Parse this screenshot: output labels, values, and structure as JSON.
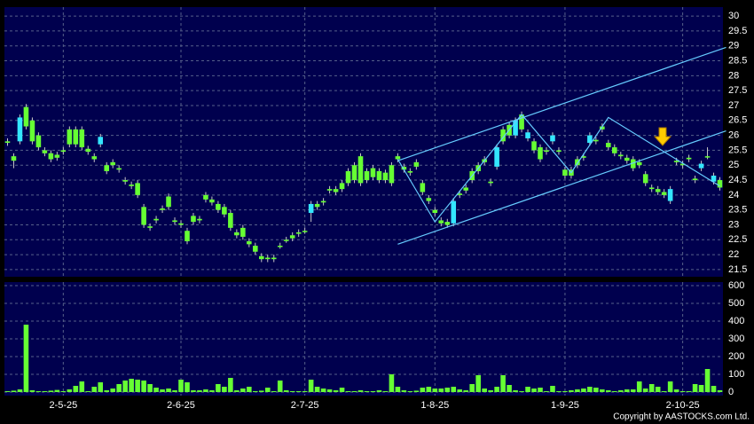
{
  "chart_data": {
    "type": "candlestick",
    "categories": [
      null,
      null,
      null,
      null,
      null,
      null,
      null,
      null,
      null,
      "2-5-25",
      null,
      null,
      null,
      null,
      null,
      null,
      null,
      null,
      null,
      null,
      null,
      null,
      null,
      null,
      null,
      null,
      null,
      null,
      "2-6-25",
      null,
      null,
      null,
      null,
      null,
      null,
      null,
      null,
      null,
      null,
      null,
      null,
      null,
      null,
      null,
      null,
      null,
      null,
      null,
      "2-7-25",
      null,
      null,
      null,
      null,
      null,
      null,
      null,
      null,
      null,
      null,
      null,
      null,
      null,
      null,
      null,
      null,
      null,
      null,
      null,
      null,
      "1-8-25",
      null,
      null,
      null,
      null,
      null,
      null,
      null,
      null,
      null,
      null,
      null,
      null,
      null,
      null,
      null,
      null,
      null,
      null,
      null,
      null,
      "1-9-25",
      null,
      null,
      null,
      null,
      null,
      null,
      null,
      null,
      null,
      null,
      null,
      null,
      null,
      null,
      null,
      null,
      null,
      null,
      "2-10-25",
      null,
      null,
      null,
      null,
      null,
      null
    ],
    "open": [
      25.8,
      25.3,
      25.8,
      26.95,
      26.5,
      26.0,
      25.5,
      25.4,
      25.35,
      25.5,
      26.2,
      26.2,
      26.2,
      25.55,
      25.3,
      25.7,
      25.0,
      25.1,
      24.9,
      24.5,
      24.35,
      24.4,
      23.6,
      22.95,
      23.2,
      23.55,
      23.95,
      23.15,
      23.05,
      22.8,
      23.3,
      23.2,
      24.0,
      23.85,
      23.7,
      23.6,
      23.4,
      22.75,
      22.9,
      22.45,
      22.3,
      21.95,
      21.9,
      21.9,
      22.3,
      22.5,
      22.65,
      22.75,
      22.8,
      23.4,
      23.7,
      23.8,
      24.2,
      24.2,
      24.4,
      24.8,
      25.0,
      25.3,
      24.8,
      24.9,
      24.8,
      24.75,
      25.0,
      25.3,
      24.95,
      24.8,
      25.1,
      24.4,
      23.9,
      23.5,
      23.15,
      23.1,
      23.05,
      24.05,
      24.25,
      24.8,
      25.0,
      25.2,
      24.45,
      24.95,
      26.2,
      26.35,
      26.0,
      26.7,
      25.9,
      25.8,
      25.6,
      25.5,
      25.8,
      25.5,
      24.85,
      24.85,
      25.2,
      25.3,
      25.75,
      25.85,
      26.3,
      25.75,
      25.6,
      25.35,
      25.25,
      25.2,
      25.1,
      24.7,
      24.25,
      24.2,
      24.1,
      23.8,
      25.15,
      25.05,
      25.25,
      24.55,
      24.9,
      25.3,
      24.45,
      24.5
    ],
    "high": [
      25.9,
      25.4,
      26.7,
      27.05,
      26.6,
      26.1,
      25.6,
      25.5,
      25.45,
      25.6,
      26.3,
      26.3,
      26.3,
      25.65,
      25.4,
      26.05,
      25.1,
      25.2,
      25.0,
      24.6,
      24.45,
      24.5,
      23.7,
      23.05,
      23.3,
      23.65,
      24.05,
      23.25,
      23.15,
      22.9,
      23.4,
      23.3,
      24.1,
      23.95,
      23.8,
      23.7,
      23.5,
      22.85,
      23.0,
      22.55,
      22.4,
      22.05,
      22.0,
      22.0,
      22.4,
      22.6,
      22.75,
      22.85,
      22.9,
      23.8,
      23.8,
      23.9,
      24.3,
      24.3,
      24.5,
      24.9,
      25.1,
      25.4,
      24.9,
      25.0,
      24.9,
      24.85,
      25.1,
      25.4,
      25.05,
      24.9,
      25.2,
      24.5,
      24.0,
      23.6,
      23.25,
      23.2,
      23.9,
      24.15,
      24.35,
      24.9,
      25.1,
      25.3,
      24.55,
      25.7,
      26.3,
      26.45,
      26.6,
      26.8,
      26.2,
      25.9,
      25.7,
      25.6,
      26.1,
      25.6,
      24.95,
      24.95,
      25.3,
      25.4,
      26.1,
      25.95,
      26.4,
      25.85,
      25.7,
      25.45,
      25.35,
      25.3,
      25.2,
      24.8,
      24.35,
      24.3,
      24.2,
      24.3,
      25.25,
      25.15,
      25.35,
      24.65,
      25.15,
      25.6,
      24.75,
      24.6
    ],
    "low": [
      25.65,
      24.9,
      25.7,
      26.2,
      25.7,
      25.5,
      25.3,
      25.1,
      25.15,
      25.35,
      25.6,
      25.6,
      25.5,
      25.35,
      25.1,
      25.6,
      24.7,
      24.9,
      24.75,
      24.35,
      24.2,
      23.9,
      22.9,
      22.8,
      23.05,
      23.4,
      23.5,
      23.0,
      22.9,
      22.35,
      23.0,
      23.05,
      23.75,
      23.65,
      23.4,
      23.25,
      22.8,
      22.55,
      22.5,
      22.25,
      22.0,
      21.75,
      21.75,
      21.75,
      22.2,
      22.4,
      22.45,
      22.6,
      22.7,
      23.1,
      23.5,
      23.65,
      24.05,
      24.0,
      24.1,
      24.3,
      24.4,
      24.3,
      24.4,
      24.5,
      24.4,
      24.4,
      24.3,
      25.1,
      24.75,
      24.65,
      24.85,
      24.0,
      23.7,
      23.3,
      22.95,
      22.9,
      22.95,
      23.9,
      24.05,
      24.4,
      24.7,
      25.0,
      24.3,
      24.85,
      25.7,
      25.9,
      25.9,
      26.1,
      25.8,
      25.4,
      25.1,
      25.35,
      25.7,
      25.35,
      24.55,
      24.55,
      24.9,
      25.15,
      25.65,
      25.7,
      26.1,
      25.5,
      25.3,
      25.2,
      25.05,
      24.8,
      24.9,
      24.3,
      24.1,
      24.0,
      23.9,
      23.7,
      25.0,
      24.9,
      25.1,
      24.4,
      24.8,
      25.2,
      24.35,
      24.15
    ],
    "close": [
      25.75,
      25.15,
      26.6,
      26.3,
      25.8,
      25.6,
      25.4,
      25.2,
      25.25,
      25.45,
      25.7,
      25.7,
      25.6,
      25.45,
      25.2,
      25.95,
      24.8,
      25.0,
      24.85,
      24.45,
      24.3,
      24.0,
      23.0,
      22.9,
      23.15,
      23.5,
      23.6,
      23.1,
      23.0,
      22.45,
      23.1,
      23.15,
      23.85,
      23.75,
      23.5,
      23.35,
      22.9,
      22.65,
      22.6,
      22.35,
      22.1,
      21.85,
      21.85,
      21.85,
      22.3,
      22.5,
      22.55,
      22.7,
      22.8,
      23.7,
      23.6,
      23.75,
      24.15,
      24.1,
      24.2,
      24.4,
      24.5,
      24.4,
      24.5,
      24.6,
      24.5,
      24.5,
      24.4,
      25.2,
      24.85,
      24.75,
      24.95,
      24.1,
      23.8,
      23.4,
      23.05,
      23.0,
      23.8,
      24.0,
      24.15,
      24.5,
      24.8,
      25.1,
      24.4,
      25.6,
      25.8,
      26.0,
      26.5,
      26.2,
      26.1,
      25.5,
      25.2,
      25.45,
      26.0,
      25.45,
      24.65,
      24.65,
      25.0,
      25.25,
      26.0,
      25.8,
      26.2,
      25.6,
      25.4,
      25.3,
      25.15,
      24.9,
      25.0,
      24.4,
      24.2,
      24.1,
      24.0,
      24.2,
      25.1,
      25.0,
      25.2,
      24.5,
      25.05,
      25.3,
      24.65,
      24.25
    ],
    "up_color": "#33e6ff",
    "down_color": "#66ff33",
    "ylim": [
      21.26,
      30.3
    ],
    "yticks": [
      21.5,
      22,
      22.5,
      23,
      23.5,
      24,
      24.5,
      25,
      25.5,
      26,
      26.5,
      27,
      27.5,
      28,
      28.5,
      29,
      29.5,
      30
    ],
    "grid": true,
    "trendlines": [
      {
        "color": "#66ccff",
        "points": [
          [
            63,
            25.15
          ],
          [
            116,
            28.95
          ]
        ]
      },
      {
        "color": "#66ccff",
        "points": [
          [
            63,
            22.35
          ],
          [
            116,
            26.15
          ]
        ]
      },
      {
        "color": "#66ccff",
        "points": [
          [
            63,
            25.2
          ],
          [
            69,
            23.1
          ],
          [
            83,
            26.7
          ],
          [
            91,
            24.75
          ],
          [
            97,
            26.6
          ],
          [
            115,
            24.3
          ]
        ]
      }
    ],
    "volume": {
      "color": "#66ff33",
      "values": [
        5,
        8,
        15,
        380,
        10,
        5,
        5,
        8,
        12,
        5,
        15,
        35,
        60,
        5,
        30,
        55,
        10,
        20,
        45,
        65,
        75,
        70,
        65,
        45,
        25,
        15,
        20,
        10,
        70,
        55,
        10,
        10,
        15,
        10,
        45,
        30,
        80,
        10,
        20,
        30,
        5,
        8,
        25,
        5,
        65,
        10,
        5,
        5,
        5,
        70,
        30,
        20,
        15,
        10,
        25,
        5,
        5,
        10,
        5,
        5,
        10,
        5,
        100,
        30,
        10,
        5,
        8,
        25,
        30,
        20,
        20,
        25,
        30,
        15,
        10,
        45,
        95,
        20,
        10,
        30,
        95,
        40,
        10,
        5,
        30,
        20,
        25,
        5,
        35,
        5,
        5,
        10,
        15,
        20,
        30,
        25,
        15,
        10,
        5,
        10,
        15,
        15,
        60,
        20,
        45,
        30,
        5,
        60,
        15,
        5,
        5,
        45,
        40,
        130,
        35,
        10
      ],
      "ylim": [
        -20,
        620
      ],
      "yticks": [
        0,
        100,
        200,
        300,
        400,
        500,
        600
      ]
    },
    "copyright": "Copyright by AASTOCKS.com Ltd."
  }
}
